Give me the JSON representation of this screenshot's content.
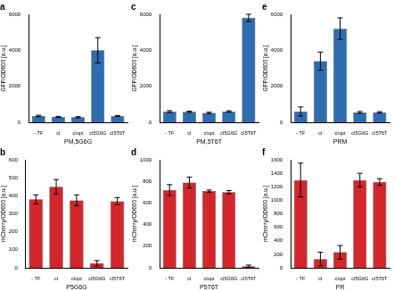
{
  "chart_data": [
    {
      "type": "bar",
      "title": "a",
      "x_label": "PM,5G6G",
      "y_label": "GFP/OD600 [a.u.]",
      "categories": [
        "- TF",
        "cI",
        "cIopt",
        "cI5G6G",
        "cI5T6T"
      ],
      "values": [
        350,
        300,
        280,
        4000,
        350
      ],
      "errors": [
        40,
        30,
        30,
        700,
        30
      ],
      "color": "#2e6db0",
      "ylim": [
        0,
        6000
      ],
      "yticks": [
        0,
        2000,
        4000,
        6000
      ]
    },
    {
      "type": "bar",
      "title": "c",
      "x_label": "PM,5T6T",
      "y_label": "GFP/OD600 [a.u.]",
      "categories": [
        "- TF",
        "cI",
        "cIopt",
        "cI5G6G",
        "cI5T6T"
      ],
      "values": [
        600,
        580,
        520,
        600,
        5800
      ],
      "errors": [
        50,
        40,
        40,
        40,
        200
      ],
      "color": "#2e6db0",
      "ylim": [
        0,
        6000
      ],
      "yticks": [
        0,
        2000,
        4000,
        6000
      ]
    },
    {
      "type": "bar",
      "title": "e",
      "x_label": "PRM",
      "y_label": "GFP/OD600 [a.u.]",
      "categories": [
        "- TF",
        "cI",
        "cIopt",
        "cI5G6G",
        "cI5T6T"
      ],
      "values": [
        600,
        3400,
        5200,
        550,
        550
      ],
      "errors": [
        250,
        500,
        600,
        50,
        40
      ],
      "color": "#2e6db0",
      "ylim": [
        0,
        6000
      ],
      "yticks": [
        0,
        2000,
        4000,
        6000
      ]
    },
    {
      "type": "bar",
      "title": "b",
      "x_label": "P5G6G",
      "y_label": "mCherry/OD600 [a.u.]",
      "categories": [
        "- TF",
        "cI",
        "cIopt",
        "cI5G6G",
        "cI5T6T"
      ],
      "values": [
        380,
        450,
        375,
        25,
        370
      ],
      "errors": [
        25,
        40,
        30,
        15,
        20
      ],
      "color": "#d4262b",
      "ylim": [
        0,
        600
      ],
      "yticks": [
        0,
        100,
        200,
        300,
        400,
        500,
        600
      ]
    },
    {
      "type": "bar",
      "title": "d",
      "x_label": "P5T6T",
      "y_label": "mCherry/OD600 [a.u.]",
      "categories": [
        "- TF",
        "cI",
        "cIopt",
        "cI5G6G",
        "cI5T6T"
      ],
      "values": [
        720,
        790,
        710,
        700,
        15
      ],
      "errors": [
        50,
        50,
        10,
        15,
        10
      ],
      "color": "#d4262b",
      "ylim": [
        0,
        1000
      ],
      "yticks": [
        0,
        200,
        400,
        600,
        800,
        1000
      ]
    },
    {
      "type": "bar",
      "title": "f",
      "x_label": "PR",
      "y_label": "mCherry/OD600 [a.u.]",
      "categories": [
        "- TF",
        "cI",
        "cIopt",
        "cI5G6G",
        "cI5T6T"
      ],
      "values": [
        1300,
        130,
        230,
        1300,
        1270
      ],
      "errors": [
        250,
        100,
        100,
        100,
        50
      ],
      "color": "#d4262b",
      "ylim": [
        0,
        1600
      ],
      "yticks": [
        0,
        200,
        400,
        600,
        800,
        1000,
        1200,
        1400,
        1600
      ]
    }
  ]
}
